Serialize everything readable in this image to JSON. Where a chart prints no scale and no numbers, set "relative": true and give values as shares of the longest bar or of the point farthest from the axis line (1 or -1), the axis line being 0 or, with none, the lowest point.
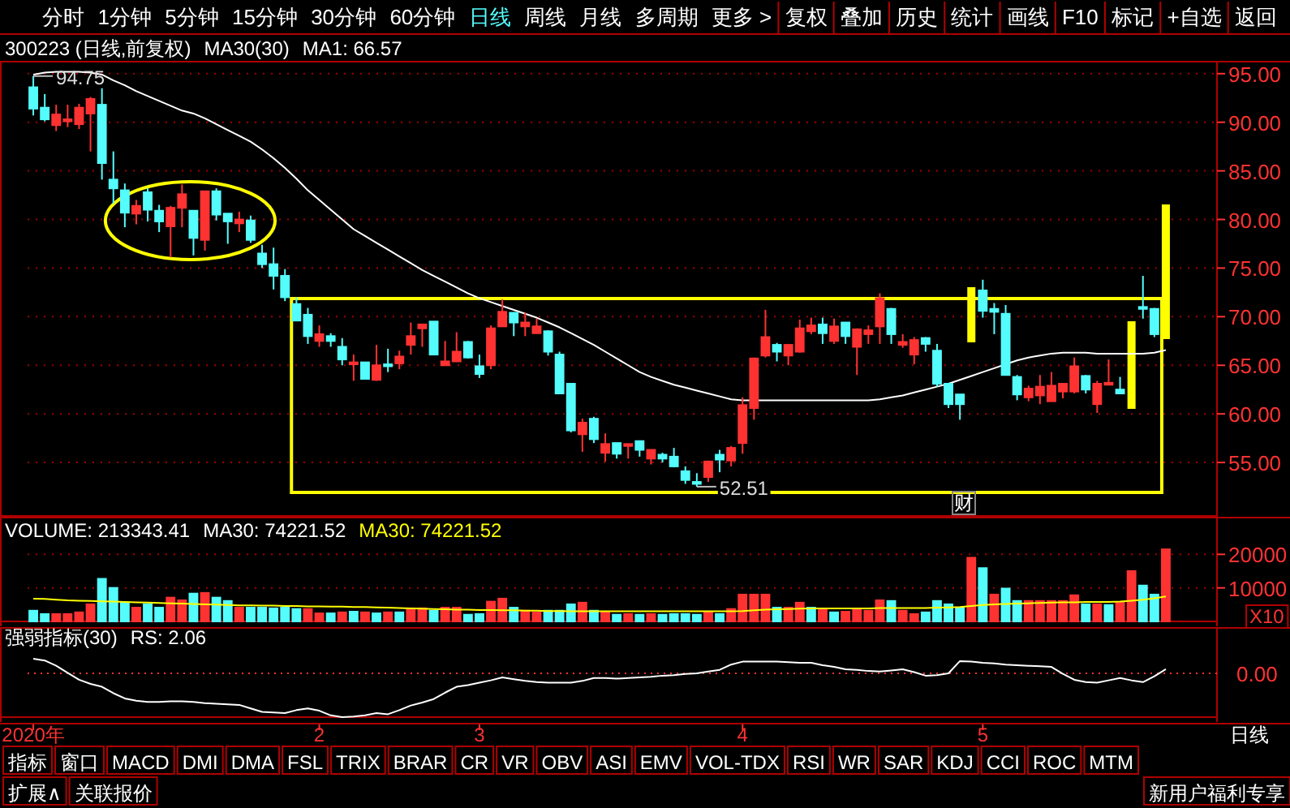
{
  "chart_data": [
    {
      "type": "candlestick",
      "title": "300223 (日线,前复权)",
      "subtitle": "MA30(30)",
      "categories": [
        null,
        null,
        null,
        null,
        null,
        null,
        null,
        null,
        null,
        null,
        null,
        null,
        null,
        null,
        null,
        null,
        null,
        null,
        null,
        null,
        null,
        null,
        null,
        null,
        null,
        null,
        null,
        null,
        null,
        null,
        null,
        null,
        null,
        null,
        null,
        null,
        null,
        null,
        null,
        null,
        null,
        null,
        null,
        null,
        null,
        null,
        null,
        null,
        null,
        null,
        null,
        null,
        null,
        null,
        null,
        null,
        null,
        null,
        null,
        null,
        null,
        null,
        null,
        null,
        null,
        null,
        null,
        null,
        null,
        null,
        null,
        null,
        null,
        null,
        null,
        null,
        null,
        null,
        null,
        null,
        null,
        null,
        null,
        null,
        null,
        null,
        null,
        null,
        null,
        null,
        null,
        null,
        null,
        null,
        null,
        null,
        null,
        null,
        null,
        null
      ],
      "ohlc": [
        [
          93.6,
          94.75,
          90.7,
          91.4
        ],
        [
          91.5,
          92.9,
          90.1,
          90.3
        ],
        [
          89.7,
          91.8,
          89.1,
          90.8
        ],
        [
          90.1,
          91.8,
          89.5,
          90.3
        ],
        [
          89.8,
          91.9,
          89.3,
          91.5
        ],
        [
          90.9,
          92.6,
          87.0,
          92.4
        ],
        [
          91.8,
          93.5,
          84.1,
          85.8
        ],
        [
          84.1,
          87.0,
          81.6,
          83.2
        ],
        [
          83.0,
          83.7,
          79.2,
          80.7
        ],
        [
          80.6,
          82.0,
          79.5,
          81.4
        ],
        [
          82.8,
          83.2,
          79.8,
          81.0
        ],
        [
          80.9,
          81.5,
          78.7,
          79.8
        ],
        [
          79.3,
          81.4,
          76.1,
          81.2
        ],
        [
          81.2,
          83.6,
          79.2,
          82.6
        ],
        [
          80.9,
          80.9,
          76.3,
          78.1
        ],
        [
          77.9,
          82.9,
          76.8,
          82.9
        ],
        [
          82.9,
          83.2,
          79.9,
          80.5
        ],
        [
          80.6,
          80.6,
          77.5,
          79.8
        ],
        [
          79.6,
          80.8,
          78.7,
          80.0
        ],
        [
          79.9,
          80.4,
          77.6,
          77.9
        ],
        [
          76.5,
          77.4,
          75.0,
          75.4
        ],
        [
          75.4,
          77.1,
          72.8,
          74.2
        ],
        [
          74.2,
          74.9,
          71.6,
          72.0
        ],
        [
          71.3,
          72.0,
          69.6,
          69.6
        ],
        [
          70.2,
          70.9,
          67.2,
          68.0
        ],
        [
          67.5,
          69.1,
          66.9,
          68.2
        ],
        [
          68.0,
          68.3,
          66.9,
          67.5
        ],
        [
          66.9,
          67.8,
          65.0,
          65.6
        ],
        [
          65.1,
          66.1,
          63.4,
          65.3
        ],
        [
          65.3,
          65.3,
          63.6,
          63.6
        ],
        [
          63.5,
          67.1,
          63.4,
          65.0
        ],
        [
          65.1,
          66.7,
          64.3,
          64.9
        ],
        [
          65.2,
          66.5,
          64.6,
          65.9
        ],
        [
          67.1,
          69.4,
          66.1,
          68.0
        ],
        [
          68.8,
          69.2,
          66.9,
          69.2
        ],
        [
          69.5,
          69.5,
          66.1,
          66.1
        ],
        [
          65.0,
          67.5,
          65.0,
          65.4
        ],
        [
          65.4,
          68.4,
          65.4,
          66.4
        ],
        [
          67.4,
          67.5,
          65.7,
          65.8
        ],
        [
          64.9,
          66.1,
          63.7,
          64.1
        ],
        [
          65.0,
          69.1,
          64.6,
          68.8
        ],
        [
          69.0,
          71.8,
          69.0,
          70.5
        ],
        [
          70.4,
          70.4,
          68.0,
          69.4
        ],
        [
          69.0,
          70.4,
          68.0,
          69.4
        ],
        [
          68.3,
          69.8,
          68.3,
          69.0
        ],
        [
          68.5,
          68.6,
          66.0,
          66.4
        ],
        [
          66.1,
          66.4,
          62.1,
          62.1
        ],
        [
          63.1,
          63.1,
          58.1,
          58.3
        ],
        [
          57.9,
          59.5,
          56.1,
          59.1
        ],
        [
          59.5,
          59.7,
          57.0,
          57.4
        ],
        [
          56.0,
          58.0,
          55.1,
          56.9
        ],
        [
          57.0,
          57.0,
          55.4,
          55.9
        ],
        [
          56.7,
          56.9,
          55.4,
          56.9
        ],
        [
          57.2,
          57.2,
          55.6,
          56.3
        ],
        [
          55.4,
          56.3,
          54.8,
          56.3
        ],
        [
          55.8,
          56.0,
          55.0,
          55.4
        ],
        [
          55.6,
          56.5,
          54.5,
          54.6
        ],
        [
          54.1,
          54.6,
          52.8,
          53.2
        ],
        [
          53.0,
          53.9,
          52.51,
          52.8
        ],
        [
          53.5,
          55.2,
          53.0,
          55.1
        ],
        [
          55.8,
          56.3,
          54.0,
          55.3
        ],
        [
          55.2,
          56.7,
          54.6,
          56.5
        ],
        [
          57.0,
          61.7,
          55.9,
          60.9
        ],
        [
          60.6,
          65.8,
          59.4,
          65.7
        ],
        [
          66.0,
          70.7,
          65.8,
          67.9
        ],
        [
          67.1,
          67.3,
          65.4,
          66.4
        ],
        [
          66.0,
          67.2,
          65.0,
          67.1
        ],
        [
          66.4,
          69.7,
          66.3,
          68.8
        ],
        [
          68.5,
          69.9,
          68.2,
          69.1
        ],
        [
          69.2,
          69.9,
          67.2,
          68.3
        ],
        [
          67.5,
          69.8,
          67.2,
          69.0
        ],
        [
          69.4,
          69.4,
          67.2,
          68.0
        ],
        [
          66.9,
          68.8,
          64.0,
          68.7
        ],
        [
          68.2,
          69.1,
          67.2,
          68.6
        ],
        [
          69.0,
          72.4,
          67.2,
          71.9
        ],
        [
          70.8,
          70.9,
          67.2,
          68.2
        ],
        [
          67.1,
          68.2,
          66.8,
          67.4
        ],
        [
          66.1,
          67.9,
          65.1,
          67.6
        ],
        [
          67.8,
          67.9,
          66.4,
          67.2
        ],
        [
          66.5,
          67.2,
          62.8,
          63.1
        ],
        [
          63.1,
          63.1,
          60.6,
          61.0
        ],
        [
          62.0,
          62.0,
          59.4,
          61.0
        ],
        null,
        [
          72.7,
          73.8,
          69.9,
          70.6
        ],
        [
          70.8,
          71.4,
          68.2,
          70.5
        ],
        [
          70.3,
          71.2,
          64.0,
          64.0
        ],
        [
          63.8,
          64.0,
          61.4,
          62.0
        ],
        [
          61.7,
          62.9,
          61.3,
          62.6
        ],
        [
          61.9,
          64.0,
          61.0,
          62.8
        ],
        [
          61.3,
          64.3,
          61.3,
          62.9
        ],
        [
          62.3,
          63.1,
          61.6,
          63.1
        ],
        [
          62.3,
          65.8,
          62.1,
          64.9
        ],
        [
          63.9,
          64.0,
          62.1,
          62.5
        ],
        [
          61.0,
          63.4,
          60.1,
          63.1
        ],
        [
          63.0,
          65.6,
          63.0,
          63.2
        ],
        [
          62.5,
          63.8,
          62.1,
          62.1
        ],
        null,
        [
          71.0,
          74.2,
          69.8,
          70.8
        ],
        [
          70.8,
          70.9,
          67.9,
          68.2
        ],
        null
      ],
      "series": [
        {
          "type": "line",
          "name": "MA1: 66.57",
          "color": "#ffffff",
          "values": [
            94.9,
            95.1,
            95.2,
            95.2,
            95.2,
            95.1,
            94.9,
            94.3,
            93.8,
            93.2,
            92.7,
            92.2,
            91.7,
            91.2,
            90.9,
            90.4,
            89.8,
            89.2,
            88.6,
            88.0,
            87.2,
            86.3,
            85.3,
            84.2,
            83.0,
            82.0,
            81.0,
            80.0,
            79.0,
            78.3,
            77.6,
            76.9,
            76.2,
            75.5,
            74.8,
            74.2,
            73.6,
            73.0,
            72.4,
            71.9,
            71.5,
            71.1,
            70.7,
            70.3,
            69.9,
            69.4,
            68.9,
            68.3,
            67.7,
            67.1,
            66.4,
            65.7,
            65.0,
            64.3,
            63.8,
            63.4,
            63.0,
            62.7,
            62.4,
            62.1,
            61.8,
            61.5,
            61.4,
            61.4,
            61.4,
            61.4,
            61.4,
            61.4,
            61.4,
            61.4,
            61.4,
            61.4,
            61.4,
            61.4,
            61.5,
            61.7,
            61.9,
            62.2,
            62.5,
            62.8,
            63.1,
            63.5,
            63.9,
            64.3,
            64.7,
            65.1,
            65.5,
            65.8,
            66.0,
            66.2,
            66.3,
            66.3,
            66.3,
            66.2,
            66.2,
            66.2,
            66.2,
            66.2,
            66.3,
            66.57
          ]
        }
      ],
      "ylim": [
        49.5,
        95.9
      ],
      "yticks": [
        {
          "value": 55,
          "label": "55.00"
        },
        {
          "value": 60,
          "label": "60.00"
        },
        {
          "value": 65,
          "label": "65.00"
        },
        {
          "value": 70,
          "label": "70.00"
        },
        {
          "value": 75,
          "label": "75.00"
        },
        {
          "value": 80,
          "label": "80.00"
        },
        {
          "value": 85,
          "label": "85.00"
        },
        {
          "value": 90,
          "label": "90.00"
        },
        {
          "value": 95,
          "label": "95.00"
        }
      ],
      "grid": "y",
      "legend": "top left",
      "tick_labels": "y",
      "annotations": [
        {
          "text": "94.75",
          "y": 94.75
        },
        {
          "text": "52.51",
          "y": 52.51
        },
        "财"
      ]
    },
    {
      "type": "bar",
      "title": "VOLUME: 213343.41",
      "subtitle": "MA30: 74221.52",
      "ylabel": "X10",
      "categories": [
        null,
        null,
        null,
        null,
        null,
        null,
        null,
        null,
        null,
        null,
        null,
        null,
        null,
        null,
        null,
        null,
        null,
        null,
        null,
        null,
        null,
        null,
        null,
        null,
        null,
        null,
        null,
        null,
        null,
        null,
        null,
        null,
        null,
        null,
        null,
        null,
        null,
        null,
        null,
        null,
        null,
        null,
        null,
        null,
        null,
        null,
        null,
        null,
        null,
        null,
        null,
        null,
        null,
        null,
        null,
        null,
        null,
        null,
        null,
        null,
        null,
        null,
        null,
        null,
        null,
        null,
        null,
        null,
        null,
        null,
        null,
        null,
        null,
        null,
        null,
        null,
        null,
        null,
        null,
        null,
        null,
        null,
        null,
        null,
        null,
        null,
        null,
        null,
        null,
        null,
        null,
        null,
        null,
        null,
        null,
        null,
        null,
        null,
        null,
        null
      ],
      "series": [
        {
          "type": "bar",
          "colors": [
            "#54fcfc",
            "#54fcfc",
            "#ff3232",
            "#ff3232",
            "#ff3232",
            "#ff3232",
            "#54fcfc",
            "#54fcfc",
            "#54fcfc",
            "#ff3232",
            "#54fcfc",
            "#54fcfc",
            "#ff3232",
            "#ff3232",
            "#54fcfc",
            "#ff3232",
            "#54fcfc",
            "#54fcfc",
            "#ff3232",
            "#54fcfc",
            "#54fcfc",
            "#54fcfc",
            "#54fcfc",
            "#54fcfc",
            "#ff3232",
            "#ff3232",
            "#54fcfc",
            "#ff3232",
            "#54fcfc",
            "#ff3232",
            "#54fcfc",
            "#ff3232",
            "#54fcfc",
            "#ff3232",
            "#ff3232",
            "#54fcfc",
            "#ff3232",
            "#ff3232",
            "#54fcfc",
            "#54fcfc",
            "#ff3232",
            "#ff3232",
            "#54fcfc",
            "#ff3232",
            "#ff3232",
            "#54fcfc",
            "#54fcfc",
            "#54fcfc",
            "#ff3232",
            "#54fcfc",
            "#ff3232",
            "#54fcfc",
            "#ff3232",
            "#54fcfc",
            "#ff3232",
            "#54fcfc",
            "#54fcfc",
            "#54fcfc",
            "#54fcfc",
            "#ff3232",
            "#54fcfc",
            "#ff3232",
            "#ff3232",
            "#ff3232",
            "#ff3232",
            "#54fcfc",
            "#ff3232",
            "#ff3232",
            "#54fcfc",
            "#ff3232",
            "#54fcfc",
            "#ff3232",
            "#ff3232",
            "#ff3232",
            "#ff3232",
            "#54fcfc",
            "#ff3232",
            "#ff3232",
            "#54fcfc",
            "#54fcfc",
            "#54fcfc",
            "#54fcfc",
            "#ff3232",
            "#54fcfc",
            "#ff3232",
            "#54fcfc",
            "#54fcfc",
            "#ff3232",
            "#ff3232",
            "#ff3232",
            "#ff3232",
            "#ff3232",
            "#54fcfc",
            "#ff3232",
            "#54fcfc",
            "#ff3232",
            "#ff3232",
            "#54fcfc",
            "#54fcfc",
            "#ff3232"
          ],
          "values": [
            3200,
            2200,
            2200,
            2200,
            2700,
            5100,
            12700,
            10000,
            5600,
            4100,
            5100,
            4100,
            7100,
            6300,
            8300,
            8500,
            7100,
            6100,
            4100,
            4100,
            4100,
            3900,
            4100,
            3700,
            3700,
            2400,
            2400,
            2700,
            2900,
            2700,
            2400,
            2700,
            2700,
            3900,
            3900,
            3200,
            4100,
            4100,
            2000,
            2200,
            5900,
            6800,
            4100,
            3200,
            2700,
            3200,
            3200,
            5100,
            5600,
            3200,
            2700,
            2000,
            2200,
            2000,
            2200,
            2000,
            2200,
            2200,
            2000,
            2700,
            2200,
            3700,
            8000,
            8000,
            8000,
            4100,
            4100,
            5600,
            4100,
            3400,
            2700,
            2900,
            3700,
            3200,
            6300,
            6100,
            3200,
            2200,
            2700,
            6100,
            5100,
            4100,
            19000,
            15900,
            8000,
            9800,
            6100,
            6100,
            6100,
            6100,
            6100,
            7800,
            5100,
            5100,
            4900,
            5600,
            15000,
            10700,
            8000,
            21500
          ]
        },
        {
          "type": "line",
          "name": "MA30: 74221.52",
          "color": "#ffff00",
          "values": [
            6800,
            6700,
            6500,
            6300,
            6200,
            6100,
            6000,
            5900,
            5800,
            5700,
            5600,
            5500,
            5400,
            5300,
            5200,
            5100,
            5000,
            4900,
            4800,
            4800,
            4700,
            4700,
            4600,
            4600,
            4500,
            4500,
            4400,
            4400,
            4300,
            4300,
            4200,
            4100,
            4000,
            3900,
            3800,
            3700,
            3600,
            3500,
            3500,
            3400,
            3400,
            3300,
            3300,
            3200,
            3200,
            3100,
            3100,
            3000,
            3000,
            3000,
            3000,
            3000,
            3000,
            3000,
            3000,
            3000,
            3000,
            3000,
            3000,
            3000,
            3000,
            3000,
            3100,
            3300,
            3500,
            3600,
            3700,
            3800,
            3900,
            3900,
            3900,
            3900,
            3900,
            3900,
            4000,
            4000,
            4000,
            4000,
            4000,
            4100,
            4200,
            4300,
            4600,
            4900,
            5100,
            5200,
            5300,
            5400,
            5500,
            5600,
            5700,
            5700,
            5800,
            5800,
            5800,
            5900,
            6200,
            6500,
            6900,
            7422
          ]
        }
      ],
      "ylim": [
        0,
        30000
      ],
      "yticks": [
        10000,
        20000
      ],
      "grid": "y",
      "legend": "top left",
      "tick_labels": "y"
    },
    {
      "type": "line",
      "title": "强弱指标(30)",
      "xlabel": "日线",
      "relative": true,
      "categories": [
        "2020年",
        null,
        null,
        null,
        null,
        null,
        null,
        null,
        null,
        null,
        null,
        null,
        null,
        null,
        null,
        null,
        null,
        null,
        null,
        null,
        null,
        null,
        null,
        null,
        null,
        "2",
        null,
        null,
        null,
        null,
        null,
        null,
        null,
        null,
        null,
        null,
        null,
        null,
        null,
        "3",
        null,
        null,
        null,
        null,
        null,
        null,
        null,
        null,
        null,
        null,
        null,
        null,
        null,
        null,
        null,
        null,
        null,
        null,
        null,
        null,
        null,
        null,
        "4",
        null,
        null,
        null,
        null,
        null,
        null,
        null,
        null,
        null,
        null,
        null,
        null,
        null,
        null,
        null,
        null,
        null,
        null,
        null,
        null,
        "5",
        null,
        null,
        null,
        null,
        null,
        null,
        null,
        null,
        null,
        null,
        null,
        null,
        null,
        null,
        null,
        null
      ],
      "series": [
        {
          "name": "RS: 2.06",
          "color": "#ffffff",
          "values": [
            1.0,
            0.97,
            0.88,
            0.76,
            0.64,
            0.57,
            0.52,
            0.41,
            0.32,
            0.28,
            0.26,
            0.26,
            0.27,
            0.27,
            0.26,
            0.24,
            0.23,
            0.22,
            0.21,
            0.15,
            0.09,
            0.08,
            0.07,
            0.12,
            0.15,
            0.11,
            0.03,
            0.0,
            0.01,
            0.03,
            0.07,
            0.05,
            0.12,
            0.2,
            0.25,
            0.31,
            0.42,
            0.52,
            0.55,
            0.59,
            0.63,
            0.68,
            0.65,
            0.62,
            0.6,
            0.59,
            0.59,
            0.59,
            0.62,
            0.67,
            0.67,
            0.66,
            0.67,
            0.68,
            0.69,
            0.71,
            0.72,
            0.74,
            0.75,
            0.78,
            0.81,
            0.9,
            0.95,
            0.95,
            0.95,
            0.95,
            0.94,
            0.93,
            0.93,
            0.89,
            0.86,
            0.82,
            0.81,
            0.79,
            0.78,
            0.8,
            0.82,
            0.77,
            0.71,
            0.72,
            0.75,
            0.96,
            0.95,
            0.93,
            0.92,
            0.9,
            0.89,
            0.88,
            0.87,
            0.86,
            0.74,
            0.64,
            0.6,
            0.59,
            0.63,
            0.67,
            0.63,
            0.6,
            0.7,
            0.82
          ]
        }
      ],
      "ref_lines": [
        {
          "axis": "y",
          "value": 0.75,
          "color": "#ff3232",
          "line_style": "dotted"
        }
      ],
      "annotations": [
        "0.00"
      ],
      "legend": "top left",
      "tick_labels": "x"
    },
    {
      "type": "other",
      "annotations": [
        "分时",
        "1分钟",
        "5分钟",
        "15分钟",
        "30分钟",
        "60分钟",
        "日线",
        "周线",
        "月线",
        "多周期",
        "更多 >",
        "复权",
        "叠加",
        "历史",
        "统计",
        "画线",
        "F10",
        "标记",
        "+自选",
        "返回"
      ]
    },
    {
      "type": "other",
      "annotations": [
        "指标",
        "窗口",
        "MACD",
        "DMI",
        "DMA",
        "FSL",
        "TRIX",
        "BRAR",
        "CR",
        "VR",
        "OBV",
        "ASI",
        "EMV",
        "VOL-TDX",
        "RSI",
        "WR",
        "SAR",
        "KDJ",
        "CCI",
        "ROC",
        "MTM"
      ]
    },
    {
      "type": "other",
      "annotations": [
        "扩展∧",
        "关联报价",
        "新用户福利专享"
      ]
    }
  ]
}
